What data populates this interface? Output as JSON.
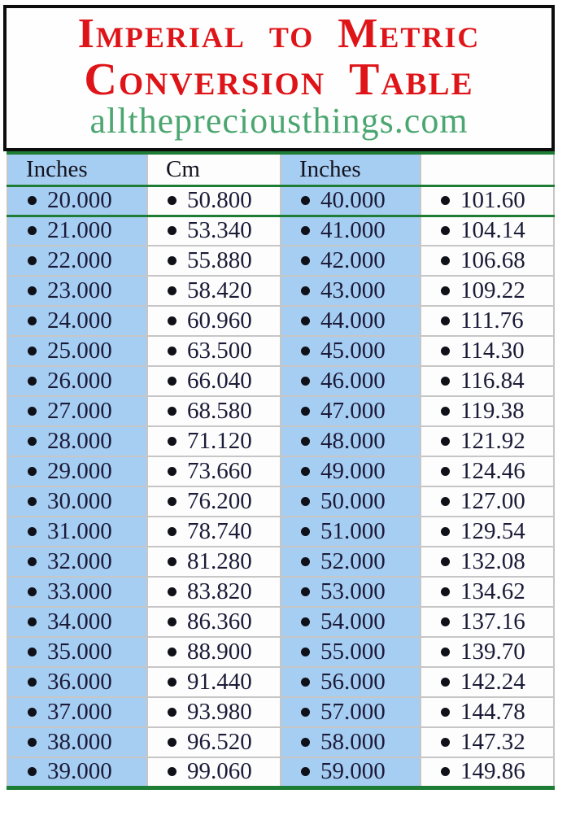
{
  "header": {
    "title_line1": "Imperial to Metric",
    "title_line2": "Conversion Table",
    "website": "allthepreciousthings.com"
  },
  "table": {
    "columns": [
      "Inches",
      "Cm",
      "Inches",
      ""
    ],
    "rows": [
      [
        "20.000",
        "50.800",
        "40.000",
        "101.60"
      ],
      [
        "21.000",
        "53.340",
        "41.000",
        "104.14"
      ],
      [
        "22.000",
        "55.880",
        "42.000",
        "106.68"
      ],
      [
        "23.000",
        "58.420",
        "43.000",
        "109.22"
      ],
      [
        "24.000",
        "60.960",
        "44.000",
        "111.76"
      ],
      [
        "25.000",
        "63.500",
        "45.000",
        "114.30"
      ],
      [
        "26.000",
        "66.040",
        "46.000",
        "116.84"
      ],
      [
        "27.000",
        "68.580",
        "47.000",
        "119.38"
      ],
      [
        "28.000",
        "71.120",
        "48.000",
        "121.92"
      ],
      [
        "29.000",
        "73.660",
        "49.000",
        "124.46"
      ],
      [
        "30.000",
        "76.200",
        "50.000",
        "127.00"
      ],
      [
        "31.000",
        "78.740",
        "51.000",
        "129.54"
      ],
      [
        "32.000",
        "81.280",
        "52.000",
        "132.08"
      ],
      [
        "33.000",
        "83.820",
        "53.000",
        "134.62"
      ],
      [
        "34.000",
        "86.360",
        "54.000",
        "137.16"
      ],
      [
        "35.000",
        "88.900",
        "55.000",
        "139.70"
      ],
      [
        "36.000",
        "91.440",
        "56.000",
        "142.24"
      ],
      [
        "37.000",
        "93.980",
        "57.000",
        "144.78"
      ],
      [
        "38.000",
        "96.520",
        "58.000",
        "147.32"
      ],
      [
        "39.000",
        "99.060",
        "59.000",
        "149.86"
      ]
    ]
  },
  "icons": {
    "bullet": "round-black-dot"
  },
  "colors": {
    "title_red": "#de1418",
    "url_green": "#4ba771",
    "cell_blue": "#a6cdf2",
    "line_green": "#1e7d35",
    "grid_gray": "#c6c6c6",
    "number_ink": "#1b1b38",
    "box_border_black": "#0d0d0d"
  }
}
